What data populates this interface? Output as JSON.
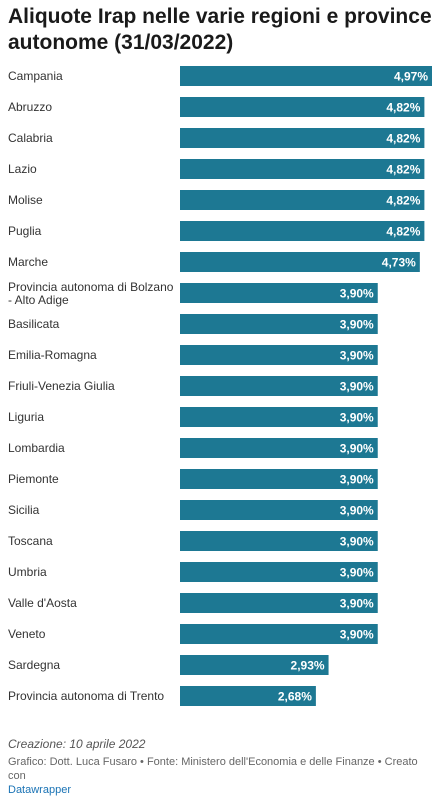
{
  "chart_data": {
    "type": "bar",
    "orientation": "horizontal",
    "title": "Aliquote Irap nelle varie regioni e province autonome (31/03/2022)",
    "categories": [
      "Campania",
      "Abruzzo",
      "Calabria",
      "Lazio",
      "Molise",
      "Puglia",
      "Marche",
      "Provincia autonoma di Bolzano - Alto Adige",
      "Basilicata",
      "Emilia-Romagna",
      "Friuli-Venezia Giulia",
      "Liguria",
      "Lombardia",
      "Piemonte",
      "Sicilia",
      "Toscana",
      "Umbria",
      "Valle d'Aosta",
      "Veneto",
      "Sardegna",
      "Provincia autonoma di Trento"
    ],
    "category_lines": [
      [
        "Campania"
      ],
      [
        "Abruzzo"
      ],
      [
        "Calabria"
      ],
      [
        "Lazio"
      ],
      [
        "Molise"
      ],
      [
        "Puglia"
      ],
      [
        "Marche"
      ],
      [
        "Provincia autonoma di Bolzano",
        "- Alto Adige"
      ],
      [
        "Basilicata"
      ],
      [
        "Emilia-Romagna"
      ],
      [
        "Friuli-Venezia Giulia"
      ],
      [
        "Liguria"
      ],
      [
        "Lombardia"
      ],
      [
        "Piemonte"
      ],
      [
        "Sicilia"
      ],
      [
        "Toscana"
      ],
      [
        "Umbria"
      ],
      [
        "Valle d'Aosta"
      ],
      [
        "Veneto"
      ],
      [
        "Sardegna"
      ],
      [
        "Provincia autonoma di Trento"
      ]
    ],
    "values": [
      4.97,
      4.82,
      4.82,
      4.82,
      4.82,
      4.82,
      4.73,
      3.9,
      3.9,
      3.9,
      3.9,
      3.9,
      3.9,
      3.9,
      3.9,
      3.9,
      3.9,
      3.9,
      3.9,
      2.93,
      2.68
    ],
    "value_labels": [
      "4,97%",
      "4,82%",
      "4,82%",
      "4,82%",
      "4,82%",
      "4,82%",
      "4,73%",
      "3,90%",
      "3,90%",
      "3,90%",
      "3,90%",
      "3,90%",
      "3,90%",
      "3,90%",
      "3,90%",
      "3,90%",
      "3,90%",
      "3,90%",
      "3,90%",
      "2,93%",
      "2,68%"
    ],
    "xlim": [
      0,
      4.97
    ],
    "bar_color": "#1d7893",
    "grid": false
  },
  "notes": {
    "created": "Creazione: 10 aprile 2022",
    "credits": "Grafico: Dott. Luca Fusaro • Fonte: Ministero dell'Economia e delle Finanze • Creato con",
    "tool_link": "Datawrapper"
  }
}
